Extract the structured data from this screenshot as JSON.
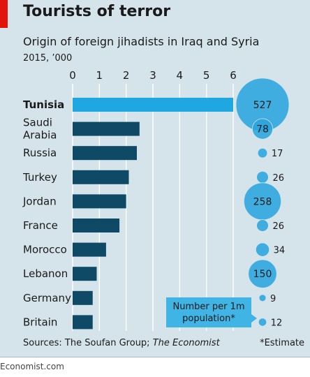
{
  "title": "Tourists of terror",
  "subtitle": "Origin of foreign jihadists in Iraq and Syria",
  "unit_label": "2015, ’000",
  "source_prefix": "Sources: The Soufan Group; ",
  "source_italic": "The Economist",
  "estimate_note": "*Estimate",
  "site": "Economist.com",
  "colors": {
    "background": "#d5e3eb",
    "bar": "#0e4a66",
    "highlight": "#1ea7e0",
    "bubble": "#2aa5dd",
    "accent": "#e3120b",
    "grid": "#ffffff"
  },
  "chart_data": {
    "type": "bar",
    "orientation": "horizontal",
    "categories": [
      "Tunisia",
      "Saudi Arabia",
      "Russia",
      "Turkey",
      "Jordan",
      "France",
      "Morocco",
      "Lebanon",
      "Germany",
      "Britain"
    ],
    "category_lines": [
      [
        "Tunisia"
      ],
      [
        "Saudi",
        "Arabia"
      ],
      [
        "Russia"
      ],
      [
        "Turkey"
      ],
      [
        "Jordan"
      ],
      [
        "France"
      ],
      [
        "Morocco"
      ],
      [
        "Lebanon"
      ],
      [
        "Germany"
      ],
      [
        "Britain"
      ]
    ],
    "highlight": "Tunisia",
    "values": [
      6,
      2.5,
      2.4,
      2.1,
      2.0,
      1.75,
      1.25,
      0.9,
      0.75,
      0.75
    ],
    "xlim": [
      0,
      6
    ],
    "xticks": [
      "0",
      "1",
      "2",
      "3",
      "4",
      "5",
      "6"
    ],
    "grid": true,
    "bubble_series": {
      "name": "Number per 1m population*",
      "name_lines": [
        "Number per 1m",
        "population*"
      ],
      "values": [
        527,
        78,
        17,
        26,
        258,
        26,
        34,
        150,
        9,
        12
      ]
    }
  }
}
